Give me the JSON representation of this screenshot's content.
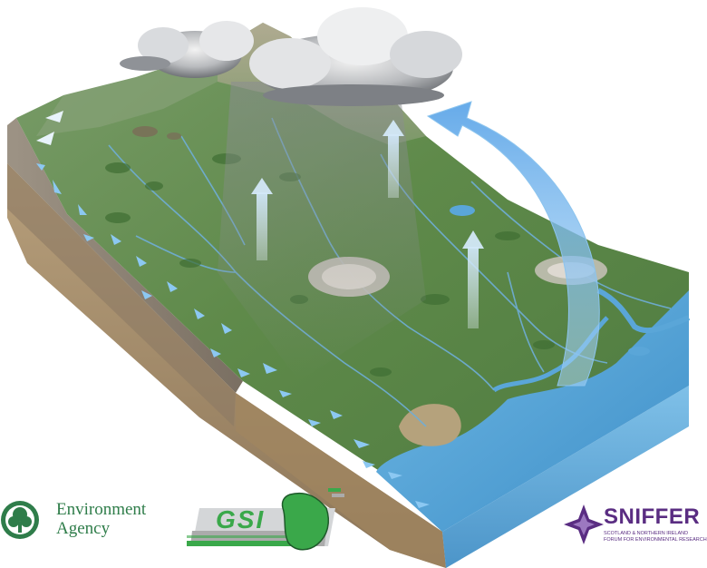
{
  "logos": {
    "environment_agency": {
      "line1": "Environment",
      "line2": "Agency",
      "color": "#2f7d4a"
    },
    "gsi": {
      "text": "GSI",
      "color": "#3aa84a"
    },
    "sniffer": {
      "name": "SNIFFER",
      "sub1": "SCOTLAND & NORTHERN IRELAND",
      "sub2": "FORUM FOR ENVIRONMENTAL RESEARCH",
      "color": "#5a2d82"
    }
  },
  "colors": {
    "land_green": "#5f8a4a",
    "water_blue": "#5aa6d8",
    "soil_brown": "#a88f6c",
    "arrow_blue": "#9fd0f5"
  }
}
